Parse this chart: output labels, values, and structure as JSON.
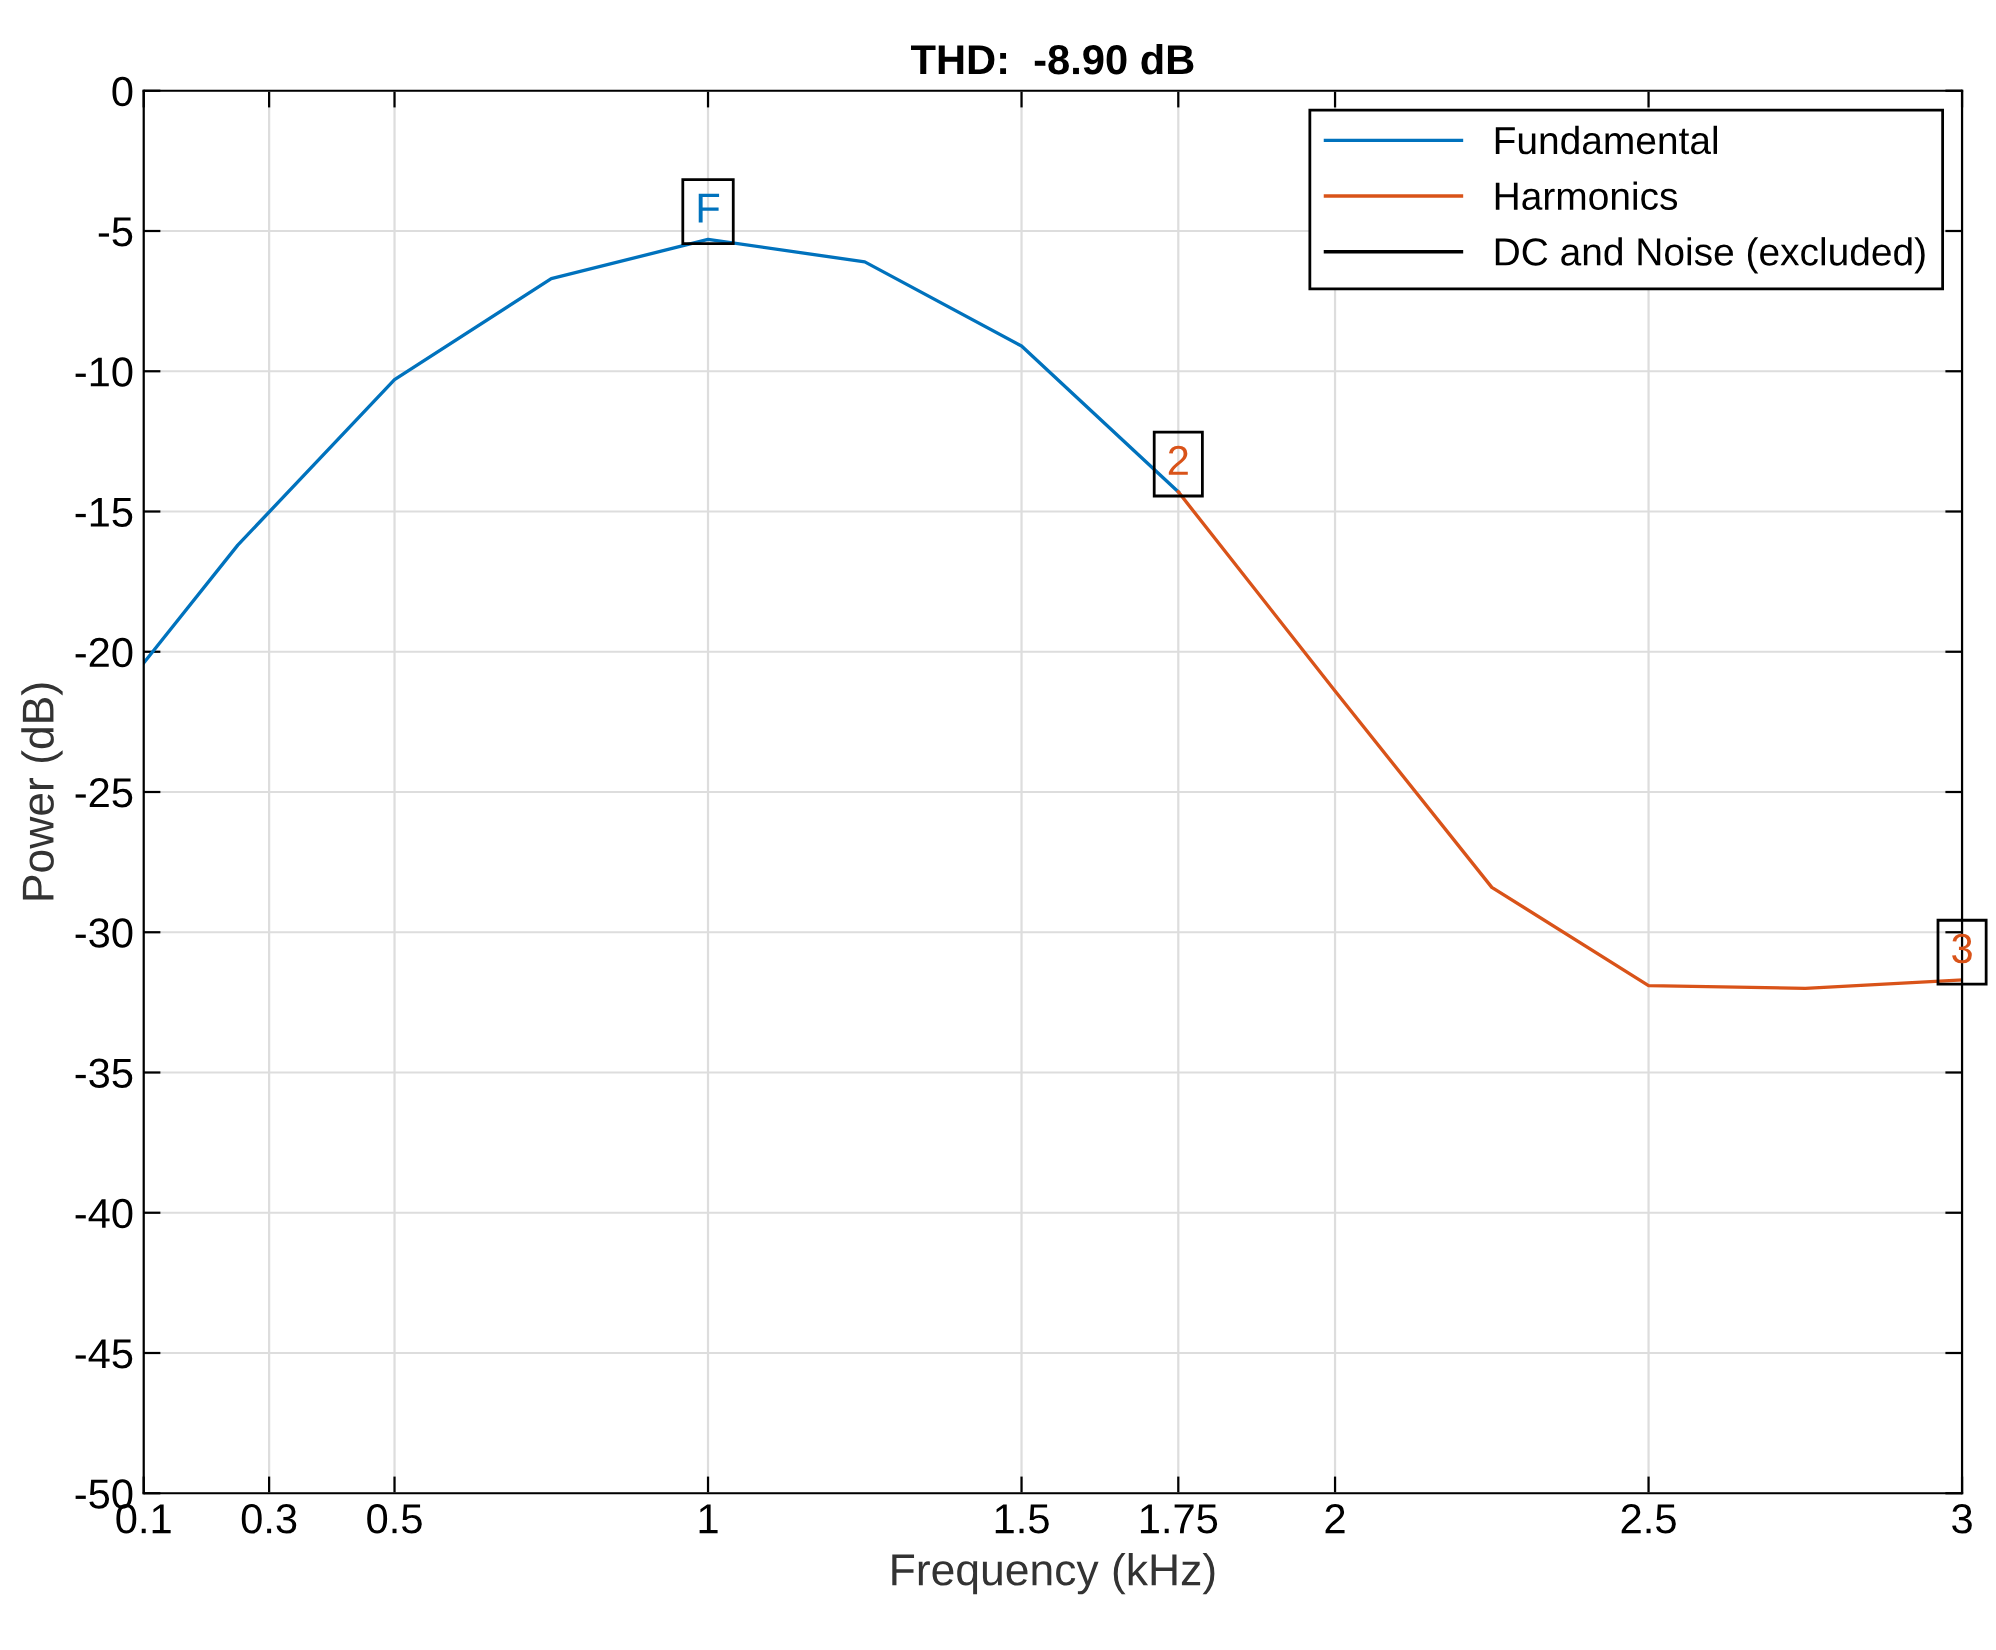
{
  "chart_data": {
    "type": "line",
    "title": "THD:  -8.90 dB",
    "xlabel": "Frequency (kHz)",
    "ylabel": "Power (dB)",
    "xlim": [
      0.1,
      3
    ],
    "xticks": [
      0.1,
      0.3,
      0.5,
      1,
      1.5,
      1.75,
      2,
      2.5,
      3
    ],
    "ylim": [
      -50,
      0
    ],
    "yticks": [
      -50,
      -45,
      -40,
      -35,
      -30,
      -25,
      -20,
      -15,
      -10,
      -5,
      0
    ],
    "grid": true,
    "legend": "top right",
    "series": [
      {
        "name": "Fundamental",
        "color": "#0072bd",
        "x": [
          0.1,
          0.25,
          0.5,
          0.75,
          1,
          1.25,
          1.5,
          1.75
        ],
        "values": [
          -20.4,
          -16.2,
          -10.3,
          -6.7,
          -5.3,
          -6.1,
          -9.1,
          -14.3
        ]
      },
      {
        "name": "Harmonics",
        "color": "#d95319",
        "x": [
          1.75,
          2,
          2.25,
          2.5,
          2.75,
          3
        ],
        "values": [
          -14.3,
          -21.4,
          -28.4,
          -31.9,
          -32.0,
          -31.7
        ]
      },
      {
        "name": "DC and Noise (excluded)",
        "color": "#000000"
      }
    ],
    "annotations": [
      {
        "text": "F",
        "x": 1,
        "y": -5.3
      },
      {
        "text": "2",
        "x": 1.75,
        "y": -14.3
      },
      {
        "text": "3",
        "x": 3,
        "y": -31.7
      }
    ]
  }
}
